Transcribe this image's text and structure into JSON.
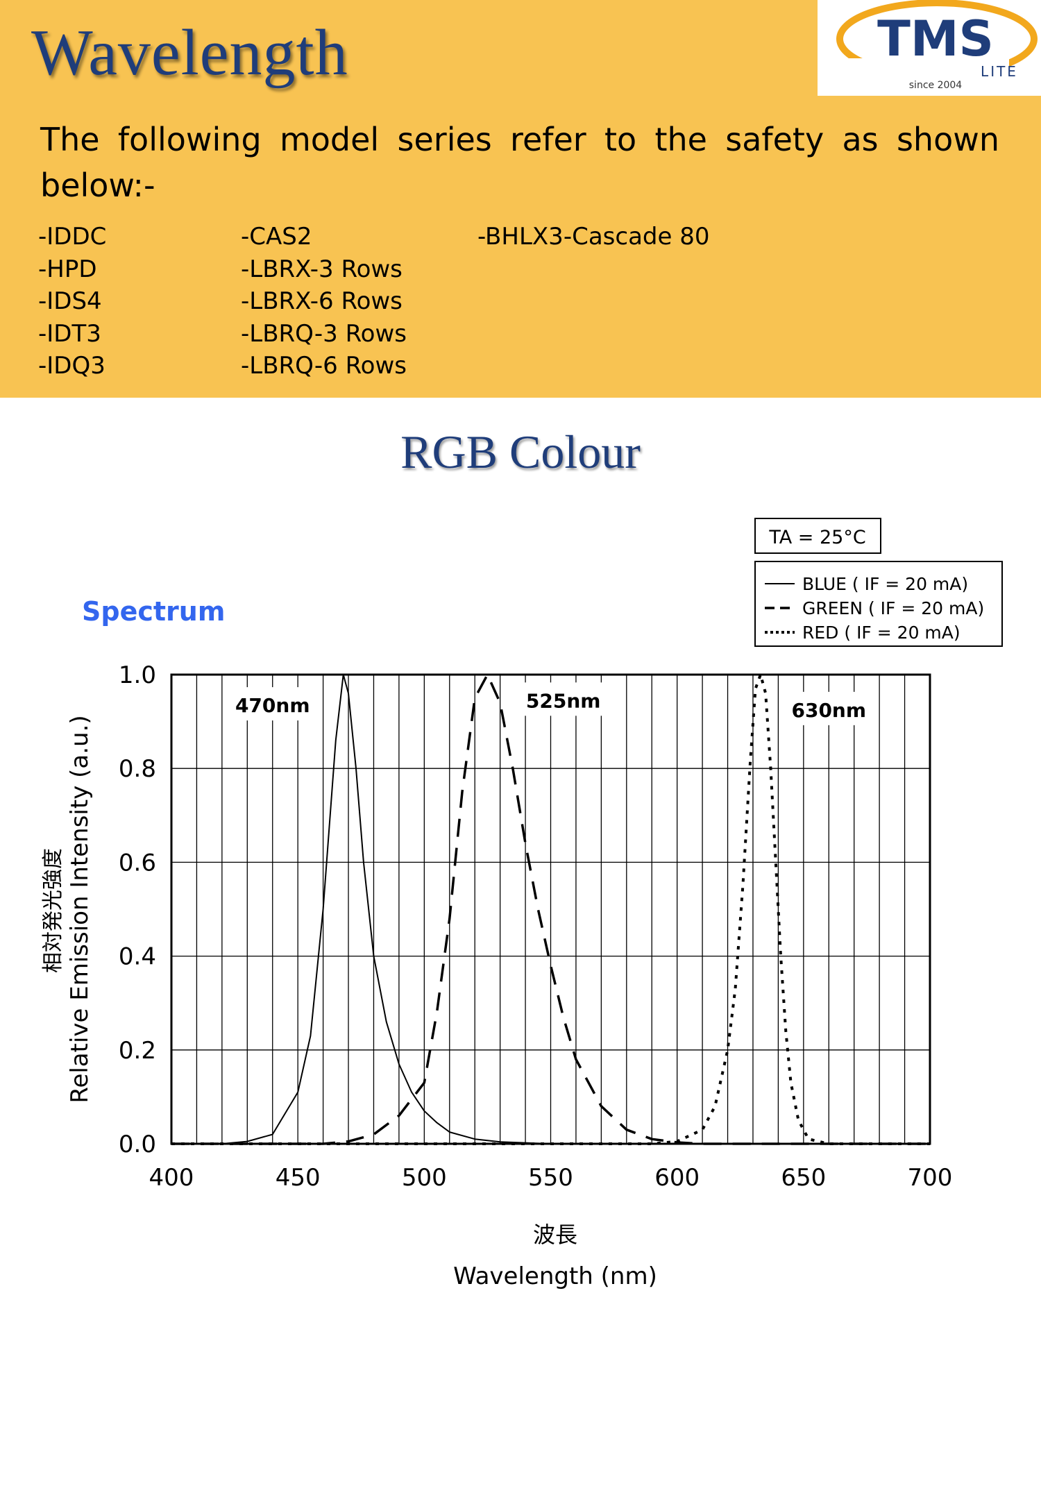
{
  "page_title": "Wavelength",
  "logo": {
    "brand": "TMS",
    "suffix": "LITE",
    "tagline": "since 2004",
    "colors": {
      "text": "#1f3d7a",
      "ring": "#f2a81d"
    }
  },
  "intro_text": "The following model series refer to the safety as shown below:-",
  "model_columns": [
    [
      "-IDDC",
      "-HPD",
      "-IDS4",
      "-IDT3",
      "-IDQ3"
    ],
    [
      "-CAS2",
      "-LBRX-3 Rows",
      "-LBRX-6 Rows",
      "-LBRQ-3 Rows",
      "-LBRQ-6 Rows"
    ],
    [
      "-BHLX3-Cascade 80"
    ]
  ],
  "section_title": "RGB Colour",
  "colors": {
    "header_bg": "#f8c352",
    "title_color": "#1f3d7a",
    "spectrum_label": "#3366ee"
  },
  "chart_data": {
    "type": "line",
    "title": "Spectrum",
    "xlabel": "Wavelength (nm)",
    "xlabel_jp": "波長",
    "ylabel": "Relative Emission Intensity (a.u.)",
    "ylabel_jp": "相対発光強度",
    "xlim": [
      400,
      700
    ],
    "ylim": [
      0,
      1.0
    ],
    "x_ticks": [
      "400",
      "450",
      "500",
      "550",
      "600",
      "650",
      "700"
    ],
    "y_ticks": [
      "0.0",
      "0.2",
      "0.4",
      "0.6",
      "0.8",
      "1.0"
    ],
    "grid": true,
    "conditions": "TA = 25°C",
    "legend_position": "top-right",
    "annotations": [
      {
        "text": "470nm",
        "x": 440,
        "y": 0.92
      },
      {
        "text": "525nm",
        "x": 555,
        "y": 0.93
      },
      {
        "text": "630nm",
        "x": 660,
        "y": 0.91
      }
    ],
    "series": [
      {
        "name": "BLUE ( IF = 20 mA)",
        "style": "solid",
        "x": [
          400,
          420,
          430,
          440,
          450,
          455,
          460,
          465,
          468,
          470,
          473,
          476,
          480,
          485,
          490,
          495,
          500,
          505,
          510,
          520,
          530,
          550,
          600,
          700
        ],
        "y": [
          0,
          0,
          0.005,
          0.02,
          0.11,
          0.23,
          0.5,
          0.86,
          1.0,
          0.96,
          0.8,
          0.6,
          0.4,
          0.26,
          0.17,
          0.11,
          0.07,
          0.045,
          0.025,
          0.01,
          0.004,
          0,
          0,
          0
        ]
      },
      {
        "name": "GREEN ( IF = 20 mA)",
        "style": "dashed",
        "x": [
          400,
          460,
          470,
          480,
          490,
          500,
          505,
          510,
          515,
          520,
          525,
          530,
          535,
          540,
          545,
          550,
          555,
          560,
          570,
          580,
          590,
          600,
          610,
          700
        ],
        "y": [
          0,
          0,
          0.005,
          0.02,
          0.06,
          0.13,
          0.28,
          0.48,
          0.75,
          0.95,
          1.0,
          0.94,
          0.8,
          0.64,
          0.5,
          0.38,
          0.27,
          0.18,
          0.08,
          0.03,
          0.01,
          0.003,
          0,
          0
        ]
      },
      {
        "name": "RED ( IF = 20 mA)",
        "style": "dotted",
        "x": [
          400,
          590,
          600,
          610,
          615,
          620,
          623,
          626,
          629,
          631,
          633,
          635,
          637,
          639,
          641,
          643,
          645,
          648,
          652,
          660,
          700
        ],
        "y": [
          0,
          0,
          0.005,
          0.03,
          0.08,
          0.2,
          0.33,
          0.55,
          0.82,
          0.97,
          1.0,
          0.96,
          0.8,
          0.6,
          0.4,
          0.24,
          0.13,
          0.05,
          0.01,
          0,
          0
        ]
      }
    ]
  }
}
